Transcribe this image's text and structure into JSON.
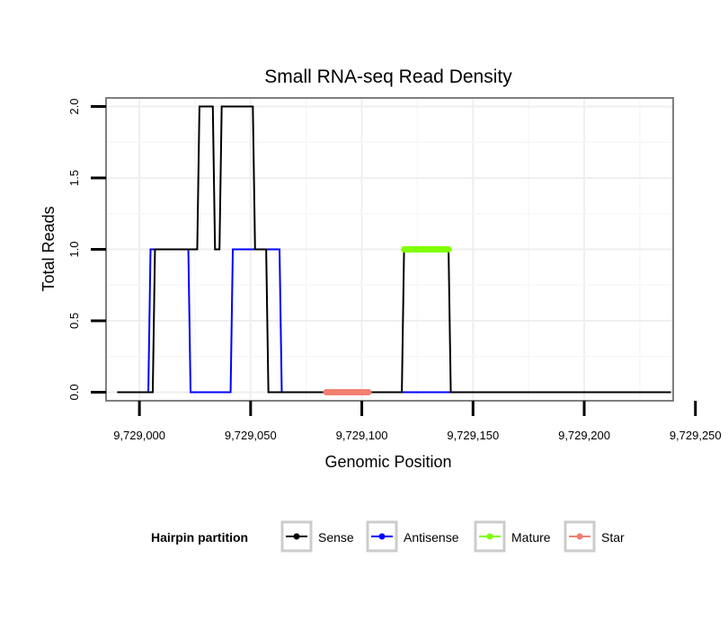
{
  "chart_data": {
    "type": "line",
    "title": "Small RNA-seq Read Density",
    "xlabel": "Genomic Position",
    "ylabel": "Total Reads",
    "xlim": [
      9728985,
      9729240
    ],
    "ylim": [
      -0.06,
      2.06
    ],
    "x_ticks": [
      9729000,
      9729050,
      9729100,
      9729150,
      9729200,
      9729250
    ],
    "x_tick_labels": [
      "9,729,000",
      "9,729,050",
      "9,729,100",
      "9,729,150",
      "9,729,200",
      "9,729,250"
    ],
    "y_ticks": [
      0,
      0.5,
      1,
      1.5,
      2
    ],
    "y_tick_labels": [
      "0.0",
      "0.5",
      "1.0",
      "1.5",
      "2.0"
    ],
    "grid": true,
    "legend": {
      "title": "Hairpin partition",
      "placement": "bottom",
      "entries": [
        {
          "name": "Sense",
          "color": "#000000"
        },
        {
          "name": "Antisense",
          "color": "#0000ff"
        },
        {
          "name": "Mature",
          "color": "#7fff00"
        },
        {
          "name": "Star",
          "color": "#f08070"
        }
      ]
    },
    "series": [
      {
        "name": "Antisense",
        "color": "#0000ff",
        "width": 2,
        "x": [
          9728990,
          9729004,
          9729005,
          9729022,
          9729023,
          9729041,
          9729042,
          9729063,
          9729064,
          9729239
        ],
        "y": [
          0,
          0,
          1,
          1,
          0,
          0,
          1,
          1,
          0,
          0
        ]
      },
      {
        "name": "Sense",
        "color": "#000000",
        "width": 2,
        "x": [
          9728990,
          9729006,
          9729007,
          9729026,
          9729027,
          9729033,
          9729034,
          9729036,
          9729037,
          9729051,
          9729052,
          9729057,
          9729058,
          9729118,
          9729119,
          9729139,
          9729140,
          9729239
        ],
        "y": [
          0,
          0,
          1,
          1,
          2,
          2,
          1,
          1,
          2,
          2,
          1,
          1,
          0,
          0,
          1,
          1,
          0,
          0
        ]
      },
      {
        "name": "Mature",
        "color": "#7fff00",
        "width": 7,
        "x": [
          9729119,
          9729139
        ],
        "y": [
          1,
          1
        ]
      },
      {
        "name": "Star",
        "color": "#f08070",
        "width": 7,
        "x": [
          9729084,
          9729103
        ],
        "y": [
          0,
          0
        ]
      }
    ]
  }
}
